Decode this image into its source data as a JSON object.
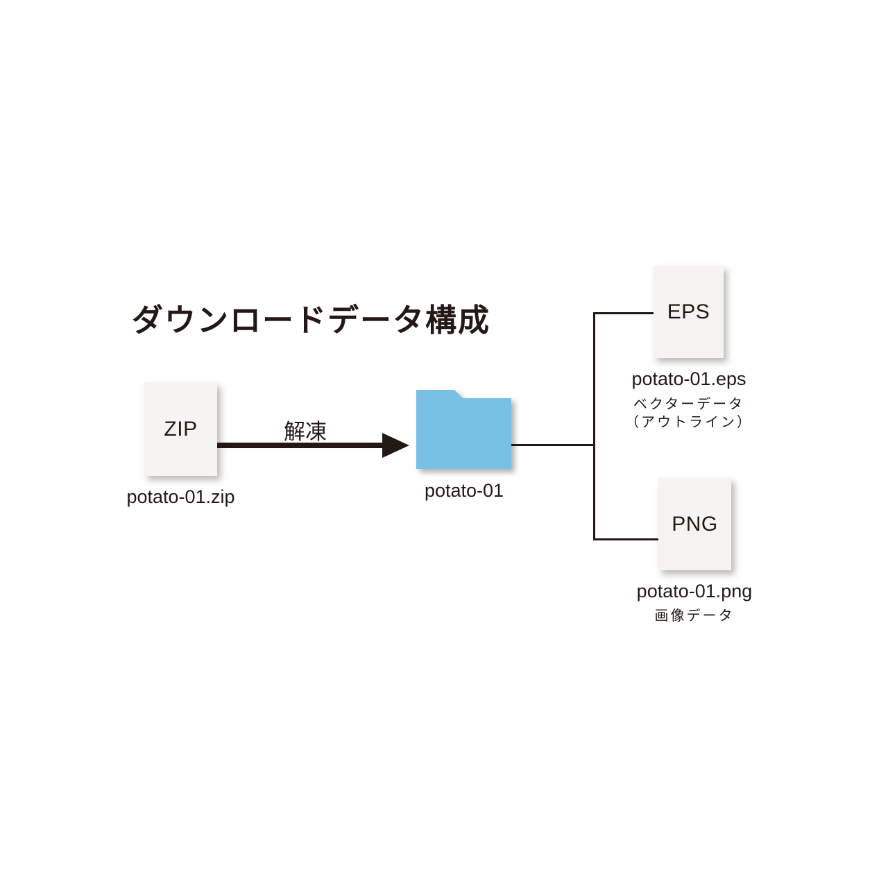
{
  "title": "ダウンロードデータ構成",
  "colors": {
    "text": "#231815",
    "folder_blue": "#79C1E4",
    "file_background": "#F5F4F1",
    "page_background": "#FFFFFF"
  },
  "zip_file": {
    "icon_label": "ZIP",
    "filename": "potato-01.zip"
  },
  "arrow": {
    "label": "解凍"
  },
  "folder": {
    "name": "potato-01"
  },
  "eps_file": {
    "icon_label": "EPS",
    "filename": "potato-01.eps",
    "description_line1": "ベクターデータ",
    "description_line2": "（アウトライン）"
  },
  "png_file": {
    "icon_label": "PNG",
    "filename": "potato-01.png",
    "description": "画像データ"
  }
}
